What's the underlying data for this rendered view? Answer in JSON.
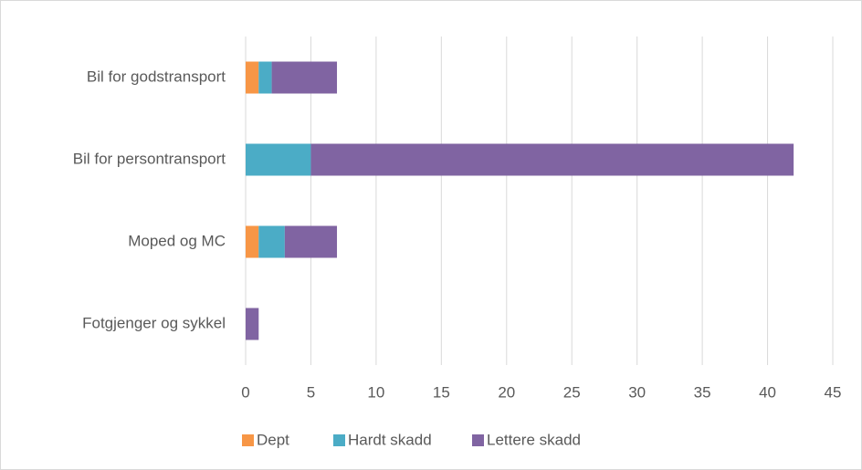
{
  "chart_data": {
    "type": "stacked_barh",
    "categories": [
      "Bil for godstransport",
      "Bil for persontransport",
      "Moped og MC",
      "Fotgjenger og sykkel"
    ],
    "series": [
      {
        "name": "Dept",
        "color": "#f79646",
        "values": [
          1,
          0,
          1,
          0
        ]
      },
      {
        "name": "Hardt skadd",
        "color": "#4bacc6",
        "values": [
          1,
          5,
          2,
          0
        ]
      },
      {
        "name": "Lettere skadd",
        "color": "#8064a2",
        "values": [
          5,
          37,
          4,
          1
        ]
      }
    ],
    "xlim": [
      0,
      45
    ],
    "xticks": [
      0,
      5,
      10,
      15,
      20,
      25,
      30,
      35,
      40,
      45
    ],
    "grid": true,
    "legend": "bottom"
  }
}
